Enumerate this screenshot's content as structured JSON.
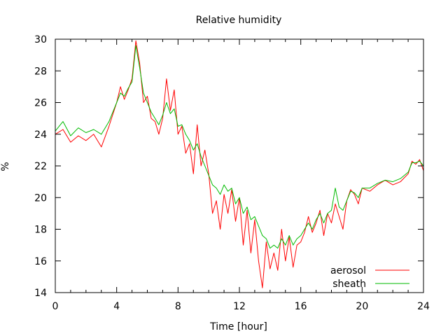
{
  "chart_data": {
    "type": "line",
    "title": "Relative humidity",
    "xlabel": "Time [hour]",
    "ylabel": "%",
    "xlim": [
      0,
      24
    ],
    "ylim": [
      14,
      30
    ],
    "xticks": [
      0,
      4,
      8,
      12,
      16,
      20,
      24
    ],
    "yticks": [
      14,
      16,
      18,
      20,
      22,
      24,
      26,
      28,
      30
    ],
    "grid": false,
    "legend_position": "bottom-right",
    "series": [
      {
        "name": "aerosol",
        "color": "#ff0000",
        "x": [
          0,
          0.5,
          1,
          1.5,
          2,
          2.5,
          3,
          3.5,
          4,
          4.25,
          4.5,
          4.75,
          5,
          5.25,
          5.5,
          5.75,
          6,
          6.25,
          6.5,
          6.75,
          7,
          7.25,
          7.5,
          7.75,
          8,
          8.25,
          8.5,
          8.75,
          9,
          9.25,
          9.5,
          9.75,
          10,
          10.25,
          10.5,
          10.75,
          11,
          11.25,
          11.5,
          11.75,
          12,
          12.25,
          12.5,
          12.75,
          13,
          13.25,
          13.5,
          13.75,
          14,
          14.25,
          14.5,
          14.75,
          15,
          15.25,
          15.5,
          15.75,
          16,
          16.25,
          16.5,
          16.75,
          17,
          17.25,
          17.5,
          17.75,
          18,
          18.25,
          18.5,
          18.75,
          19,
          19.25,
          19.5,
          19.75,
          20,
          20.5,
          21,
          21.5,
          22,
          22.5,
          23,
          23.25,
          23.5,
          23.75,
          24
        ],
        "values": [
          24.0,
          24.3,
          23.5,
          23.9,
          23.6,
          24.0,
          23.2,
          24.5,
          26.0,
          27.0,
          26.2,
          26.8,
          27.5,
          29.9,
          28.5,
          26.0,
          26.4,
          25.0,
          24.8,
          24.0,
          25.0,
          27.5,
          25.5,
          26.8,
          24.0,
          24.5,
          22.8,
          23.4,
          21.5,
          24.6,
          22.0,
          23.0,
          21.5,
          19.0,
          19.8,
          18.0,
          20.2,
          19.0,
          20.5,
          18.5,
          20.0,
          17.0,
          19.2,
          16.5,
          18.6,
          16.0,
          14.3,
          17.2,
          15.5,
          16.5,
          15.4,
          18.0,
          16.0,
          17.5,
          15.6,
          17.0,
          17.2,
          17.8,
          18.8,
          17.8,
          18.4,
          19.2,
          17.6,
          19.0,
          18.4,
          19.6,
          18.8,
          18.0,
          19.8,
          20.5,
          20.2,
          19.6,
          20.6,
          20.4,
          20.8,
          21.1,
          20.8,
          21.0,
          21.5,
          22.3,
          22.1,
          22.4,
          21.7
        ]
      },
      {
        "name": "sheath",
        "color": "#00bb00",
        "x": [
          0,
          0.5,
          1,
          1.5,
          2,
          2.5,
          3,
          3.5,
          4,
          4.25,
          4.5,
          4.75,
          5,
          5.25,
          5.5,
          5.75,
          6,
          6.25,
          6.5,
          6.75,
          7,
          7.25,
          7.5,
          7.75,
          8,
          8.25,
          8.5,
          8.75,
          9,
          9.25,
          9.5,
          9.75,
          10,
          10.25,
          10.5,
          10.75,
          11,
          11.25,
          11.5,
          11.75,
          12,
          12.25,
          12.5,
          12.75,
          13,
          13.25,
          13.5,
          13.75,
          14,
          14.25,
          14.5,
          14.75,
          15,
          15.25,
          15.5,
          15.75,
          16,
          16.25,
          16.5,
          16.75,
          17,
          17.25,
          17.5,
          17.75,
          18,
          18.25,
          18.5,
          18.75,
          19,
          19.25,
          19.5,
          19.75,
          20,
          20.5,
          21,
          21.5,
          22,
          22.5,
          23,
          23.25,
          23.5,
          23.75,
          24
        ],
        "values": [
          24.2,
          24.8,
          23.9,
          24.4,
          24.1,
          24.3,
          24.0,
          24.8,
          26.0,
          26.6,
          26.4,
          26.9,
          27.3,
          29.6,
          28.2,
          26.6,
          26.0,
          25.4,
          25.0,
          24.6,
          25.2,
          26.0,
          25.3,
          25.6,
          24.5,
          24.6,
          24.0,
          23.6,
          23.0,
          23.4,
          22.6,
          22.0,
          21.4,
          20.8,
          20.6,
          20.2,
          20.8,
          20.4,
          20.6,
          19.6,
          20.0,
          19.0,
          19.4,
          18.6,
          18.8,
          18.2,
          17.6,
          17.4,
          16.8,
          17.0,
          16.8,
          17.4,
          17.0,
          17.6,
          17.0,
          17.4,
          17.6,
          18.0,
          18.4,
          18.0,
          18.6,
          19.0,
          18.4,
          19.0,
          19.2,
          20.6,
          19.4,
          19.2,
          19.8,
          20.4,
          20.3,
          20.0,
          20.6,
          20.6,
          20.9,
          21.1,
          21.0,
          21.2,
          21.6,
          22.2,
          22.2,
          22.3,
          22.0
        ]
      }
    ]
  }
}
